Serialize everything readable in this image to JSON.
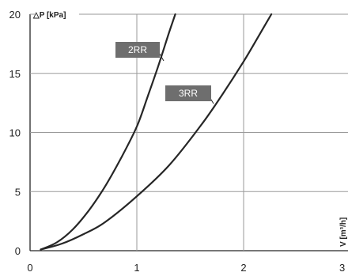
{
  "chart_data": {
    "type": "line",
    "ylabel": "△P [kPa]",
    "xlabel": "V [m³/h]",
    "xlim": [
      0,
      3
    ],
    "ylim": [
      0,
      20
    ],
    "x_ticks": [
      "0",
      "1",
      "2",
      "3"
    ],
    "y_ticks": [
      "0",
      "5",
      "10",
      "15",
      "20"
    ],
    "grid": true,
    "colors": {
      "curve": "#262626",
      "grid": "#9a9a9a",
      "tag": "#6e6e6e"
    },
    "series": [
      {
        "name": "2RR",
        "points": [
          [
            0.1,
            0.1
          ],
          [
            0.25,
            0.7
          ],
          [
            0.4,
            1.8
          ],
          [
            0.55,
            3.4
          ],
          [
            0.7,
            5.4
          ],
          [
            0.85,
            7.8
          ],
          [
            1.0,
            10.5
          ],
          [
            1.1,
            13.0
          ],
          [
            1.2,
            15.6
          ],
          [
            1.3,
            18.4
          ],
          [
            1.36,
            20.0
          ]
        ]
      },
      {
        "name": "3RR",
        "points": [
          [
            0.1,
            0.1
          ],
          [
            0.3,
            0.6
          ],
          [
            0.5,
            1.4
          ],
          [
            0.7,
            2.4
          ],
          [
            1.0,
            4.6
          ],
          [
            1.3,
            7.2
          ],
          [
            1.6,
            10.6
          ],
          [
            1.8,
            13.2
          ],
          [
            2.0,
            16.0
          ],
          [
            2.15,
            18.3
          ],
          [
            2.26,
            20.0
          ]
        ]
      }
    ]
  }
}
